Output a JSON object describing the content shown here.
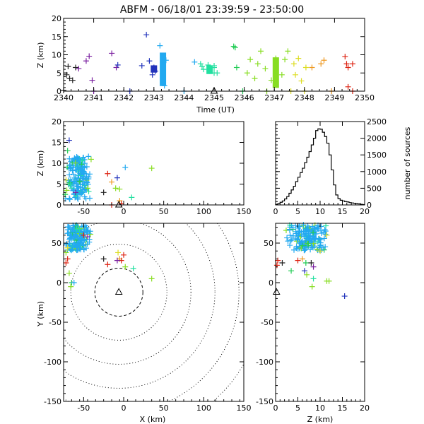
{
  "title": "ABFM - 06/18/01 23:39:59 - 23:50:00",
  "colors": {
    "axis": "#000000",
    "bulk_source": "#22a9f0",
    "series": [
      "#222222",
      "#7a1fa0",
      "#2233bb",
      "#22a9f0",
      "#22e0a0",
      "#22cc55",
      "#88dd22",
      "#dddd22",
      "#ee9922",
      "#dd2211"
    ]
  },
  "chart_data": [
    {
      "id": "time_height",
      "type": "scatter",
      "xlabel": "Time (UT)",
      "ylabel": "Z (km)",
      "xlim": [
        2340,
        2350
      ],
      "ylim": [
        0,
        20
      ],
      "xticks": [
        "2340",
        "2341",
        "2342",
        "2343",
        "2344",
        "2345",
        "2346",
        "2347",
        "2348",
        "2349",
        "2350"
      ],
      "yticks": [
        "0",
        "5",
        "10",
        "15",
        "20"
      ],
      "points": [
        {
          "x": 2340.0,
          "y": 0.2,
          "c": 0
        },
        {
          "x": 2340.1,
          "y": 4.5,
          "c": 0
        },
        {
          "x": 2340.15,
          "y": 6.8,
          "c": 0
        },
        {
          "x": 2340.2,
          "y": 3.5,
          "c": 0
        },
        {
          "x": 2340.3,
          "y": 3.0,
          "c": 0
        },
        {
          "x": 2340.4,
          "y": 6.5,
          "c": 0
        },
        {
          "x": 2340.5,
          "y": 6.2,
          "c": 1
        },
        {
          "x": 2340.75,
          "y": 8.3,
          "c": 1
        },
        {
          "x": 2340.85,
          "y": 9.6,
          "c": 1
        },
        {
          "x": 2340.95,
          "y": 3.0,
          "c": 1
        },
        {
          "x": 2341.0,
          "y": 0.0,
          "c": 1
        },
        {
          "x": 2341.6,
          "y": 10.4,
          "c": 1
        },
        {
          "x": 2341.75,
          "y": 6.5,
          "c": 1
        },
        {
          "x": 2341.8,
          "y": 7.2,
          "c": 2
        },
        {
          "x": 2342.2,
          "y": 0.0,
          "c": 2
        },
        {
          "x": 2342.6,
          "y": 7.0,
          "c": 2
        },
        {
          "x": 2342.75,
          "y": 15.5,
          "c": 2
        },
        {
          "x": 2342.85,
          "y": 8.3,
          "c": 2
        },
        {
          "x": 2342.95,
          "y": 4.5,
          "c": 2
        },
        {
          "x": 2343.0,
          "y": 6.5,
          "c": 2
        },
        {
          "x": 2343.05,
          "y": 5.5,
          "c": 2
        },
        {
          "x": 2343.2,
          "y": 12.5,
          "c": 3
        },
        {
          "x": 2343.3,
          "y": 9.5,
          "c": 3
        },
        {
          "x": 2343.3,
          "y": 8.0,
          "c": 3
        },
        {
          "x": 2343.3,
          "y": 6.0,
          "c": 3
        },
        {
          "x": 2343.3,
          "y": 4.0,
          "c": 3
        },
        {
          "x": 2343.3,
          "y": 2.2,
          "c": 3
        },
        {
          "x": 2343.4,
          "y": 8.5,
          "c": 3
        },
        {
          "x": 2343.35,
          "y": 1.5,
          "c": 3
        },
        {
          "x": 2344.0,
          "y": 0.0,
          "c": 3
        },
        {
          "x": 2344.35,
          "y": 8.0,
          "c": 3
        },
        {
          "x": 2344.55,
          "y": 7.5,
          "c": 4
        },
        {
          "x": 2344.6,
          "y": 6.8,
          "c": 4
        },
        {
          "x": 2344.65,
          "y": 6.0,
          "c": 4
        },
        {
          "x": 2344.8,
          "y": 7.2,
          "c": 4
        },
        {
          "x": 2344.85,
          "y": 5.5,
          "c": 4
        },
        {
          "x": 2345.0,
          "y": 7.0,
          "c": 4
        },
        {
          "x": 2345.0,
          "y": 6.5,
          "c": 4
        },
        {
          "x": 2345.0,
          "y": 5.0,
          "c": 4
        },
        {
          "x": 2345.1,
          "y": 5.0,
          "c": 4
        },
        {
          "x": 2345.65,
          "y": 12.3,
          "c": 5
        },
        {
          "x": 2345.7,
          "y": 12.0,
          "c": 5
        },
        {
          "x": 2345.75,
          "y": 6.5,
          "c": 5
        },
        {
          "x": 2345.95,
          "y": 0.0,
          "c": 5
        },
        {
          "x": 2346.1,
          "y": 5.0,
          "c": 6
        },
        {
          "x": 2346.2,
          "y": 8.7,
          "c": 6
        },
        {
          "x": 2346.35,
          "y": 3.5,
          "c": 6
        },
        {
          "x": 2346.45,
          "y": 7.5,
          "c": 6
        },
        {
          "x": 2346.55,
          "y": 11.0,
          "c": 6
        },
        {
          "x": 2346.7,
          "y": 6.2,
          "c": 6
        },
        {
          "x": 2346.75,
          "y": 0.0,
          "c": 6
        },
        {
          "x": 2346.9,
          "y": 3.0,
          "c": 6
        },
        {
          "x": 2347.05,
          "y": 9.0,
          "c": 6
        },
        {
          "x": 2347.25,
          "y": 4.5,
          "c": 6
        },
        {
          "x": 2347.35,
          "y": 8.7,
          "c": 6
        },
        {
          "x": 2347.45,
          "y": 11.0,
          "c": 6
        },
        {
          "x": 2347.55,
          "y": 0.0,
          "c": 7
        },
        {
          "x": 2347.65,
          "y": 7.5,
          "c": 7
        },
        {
          "x": 2347.7,
          "y": 4.5,
          "c": 7
        },
        {
          "x": 2347.8,
          "y": 9.0,
          "c": 7
        },
        {
          "x": 2347.9,
          "y": 2.8,
          "c": 7
        },
        {
          "x": 2348.0,
          "y": 0.0,
          "c": 7
        },
        {
          "x": 2348.05,
          "y": 6.5,
          "c": 7
        },
        {
          "x": 2348.25,
          "y": 6.5,
          "c": 8
        },
        {
          "x": 2348.55,
          "y": 7.5,
          "c": 8
        },
        {
          "x": 2348.65,
          "y": 8.5,
          "c": 8
        },
        {
          "x": 2348.9,
          "y": 0.0,
          "c": 8
        },
        {
          "x": 2349.35,
          "y": 9.5,
          "c": 9
        },
        {
          "x": 2349.4,
          "y": 7.5,
          "c": 9
        },
        {
          "x": 2349.45,
          "y": 6.5,
          "c": 9
        },
        {
          "x": 2349.45,
          "y": 1.2,
          "c": 9
        },
        {
          "x": 2349.6,
          "y": 7.5,
          "c": 9
        },
        {
          "x": 2349.6,
          "y": 0.0,
          "c": 9
        }
      ],
      "bars": [
        {
          "x": 2343.0,
          "y0": 5.2,
          "y1": 7.0,
          "c": 2
        },
        {
          "x": 2343.3,
          "y0": 1.5,
          "y1": 10.5,
          "c": 3
        },
        {
          "x": 2344.85,
          "y0": 4.8,
          "y1": 7.0,
          "c": 4
        },
        {
          "x": 2347.05,
          "y0": 1.0,
          "y1": 9.2,
          "c": 6
        }
      ],
      "station": {
        "x": 2345.0,
        "y": 0.0
      }
    },
    {
      "id": "x_height",
      "type": "scatter",
      "xlabel": "",
      "ylabel": "Z (km)",
      "xlim": [
        -75,
        150
      ],
      "ylim": [
        0,
        20
      ],
      "xticks": [
        "-50",
        "0",
        "50",
        "100",
        "150"
      ],
      "yticks": [
        "0",
        "5",
        "10",
        "15",
        "20"
      ],
      "bulk": {
        "xmin": -74,
        "xmax": -40,
        "ymin": 1.0,
        "ymax": 12.0,
        "n": 170
      },
      "points": [
        {
          "x": -68,
          "y": 15.5,
          "c": 2
        },
        {
          "x": -70,
          "y": 13.0,
          "c": 5
        },
        {
          "x": -72,
          "y": 6.0,
          "c": 7
        },
        {
          "x": -71,
          "y": 3.5,
          "c": 6
        },
        {
          "x": -73,
          "y": 2.5,
          "c": 5
        },
        {
          "x": -60,
          "y": 3.0,
          "c": 1
        },
        {
          "x": -45,
          "y": 4.0,
          "c": 6
        },
        {
          "x": -20,
          "y": 7.5,
          "c": 9
        },
        {
          "x": -25,
          "y": 3.0,
          "c": 0
        },
        {
          "x": -15,
          "y": 5.5,
          "c": 8
        },
        {
          "x": -10,
          "y": 4.0,
          "c": 6
        },
        {
          "x": -8,
          "y": 6.5,
          "c": 2
        },
        {
          "x": -5,
          "y": 3.8,
          "c": 6
        },
        {
          "x": 2,
          "y": 9.0,
          "c": 3
        },
        {
          "x": 10,
          "y": 1.8,
          "c": 4
        },
        {
          "x": 35,
          "y": 8.8,
          "c": 6
        },
        {
          "x": -15,
          "y": 0.0,
          "c": 9
        },
        {
          "x": -5,
          "y": 1.0,
          "c": 8
        },
        {
          "x": -3,
          "y": 0.3,
          "c": 9
        }
      ],
      "station": {
        "x": -6,
        "y": 0.0
      }
    },
    {
      "id": "histogram",
      "type": "bar",
      "xlabel": "",
      "ylabel": "number of sources",
      "xlim": [
        0,
        20
      ],
      "ylim": [
        0,
        2500
      ],
      "xticks": [
        "0",
        "5",
        "10",
        "15",
        "20"
      ],
      "yticks": [
        "0",
        "500",
        "1000",
        "1500",
        "2000",
        "2500"
      ],
      "bin_width": 0.5,
      "values": [
        20,
        40,
        80,
        120,
        180,
        250,
        350,
        450,
        560,
        700,
        830,
        970,
        1100,
        1270,
        1430,
        1600,
        1800,
        2000,
        2230,
        2280,
        2270,
        2180,
        2050,
        1850,
        1500,
        1050,
        600,
        300,
        190,
        140,
        120,
        100,
        90,
        70,
        60,
        50,
        40,
        30,
        20,
        10
      ]
    },
    {
      "id": "plan_view",
      "type": "scatter",
      "xlabel": "X (km)",
      "ylabel": "Y (km)",
      "xlim": [
        -75,
        150
      ],
      "ylim": [
        -150,
        75
      ],
      "xticks": [
        "-50",
        "0",
        "50",
        "100",
        "150"
      ],
      "yticks": [
        "-150",
        "-100",
        "-50",
        "0",
        "50"
      ],
      "range_rings_km": [
        30,
        60,
        90,
        120,
        150,
        180
      ],
      "bulk": {
        "xmin": -74,
        "xmax": -40,
        "ymin": 40,
        "ymax": 74,
        "n": 170
      },
      "points": [
        {
          "x": -70,
          "y": 44,
          "c": 7
        },
        {
          "x": -72,
          "y": 38,
          "c": 6
        },
        {
          "x": -70,
          "y": 30,
          "c": 9
        },
        {
          "x": -72,
          "y": 25,
          "c": 9
        },
        {
          "x": -68,
          "y": 12,
          "c": 6
        },
        {
          "x": -65,
          "y": 0,
          "c": 5
        },
        {
          "x": -62,
          "y": 0,
          "c": 3
        },
        {
          "x": -66,
          "y": -5,
          "c": 6
        },
        {
          "x": -50,
          "y": 60,
          "c": 9
        },
        {
          "x": -45,
          "y": 58,
          "c": 1
        },
        {
          "x": -25,
          "y": 30,
          "c": 0
        },
        {
          "x": -20,
          "y": 23,
          "c": 9
        },
        {
          "x": -7,
          "y": 38,
          "c": 7
        },
        {
          "x": -5,
          "y": 30,
          "c": 8
        },
        {
          "x": -3,
          "y": 28,
          "c": 9
        },
        {
          "x": 0,
          "y": 35,
          "c": 9
        },
        {
          "x": -8,
          "y": 28,
          "c": 1
        },
        {
          "x": 2,
          "y": 20,
          "c": 6
        },
        {
          "x": 12,
          "y": 18,
          "c": 4
        },
        {
          "x": 35,
          "y": 5,
          "c": 6
        }
      ],
      "station": {
        "x": -6,
        "y": -12
      }
    },
    {
      "id": "z_y",
      "type": "scatter",
      "xlabel": "Z (km)",
      "ylabel": "",
      "xlim": [
        0,
        20
      ],
      "ylim": [
        -150,
        75
      ],
      "xticks": [
        "0",
        "5",
        "10",
        "15",
        "20"
      ],
      "yticks": [
        "-150",
        "-100",
        "-50",
        "0",
        "50"
      ],
      "bulk": {
        "xmin": 2.0,
        "xmax": 12.0,
        "ymin": 40,
        "ymax": 74,
        "n": 170
      },
      "points": [
        {
          "x": 0.5,
          "y": 28,
          "c": 9
        },
        {
          "x": 0.3,
          "y": 22,
          "c": 9
        },
        {
          "x": 1.5,
          "y": 25,
          "c": 0
        },
        {
          "x": 3.5,
          "y": 15,
          "c": 5
        },
        {
          "x": 5.0,
          "y": 28,
          "c": 9
        },
        {
          "x": 6.0,
          "y": 30,
          "c": 8
        },
        {
          "x": 6.8,
          "y": 25,
          "c": 5
        },
        {
          "x": 8.0,
          "y": 25,
          "c": 0
        },
        {
          "x": 8.5,
          "y": 20,
          "c": 1
        },
        {
          "x": 6.5,
          "y": 15,
          "c": 2
        },
        {
          "x": 7.0,
          "y": 10,
          "c": 6
        },
        {
          "x": 8.5,
          "y": 5,
          "c": 4
        },
        {
          "x": 8.2,
          "y": -5,
          "c": 6
        },
        {
          "x": 11.5,
          "y": 2,
          "c": 6
        },
        {
          "x": 12.0,
          "y": 2,
          "c": 6
        },
        {
          "x": 15.5,
          "y": -17,
          "c": 2
        },
        {
          "x": 10.0,
          "y": 40,
          "c": 7
        },
        {
          "x": 11.5,
          "y": 60,
          "c": 7
        }
      ],
      "station": {
        "x": 0.2,
        "y": -12
      }
    }
  ]
}
